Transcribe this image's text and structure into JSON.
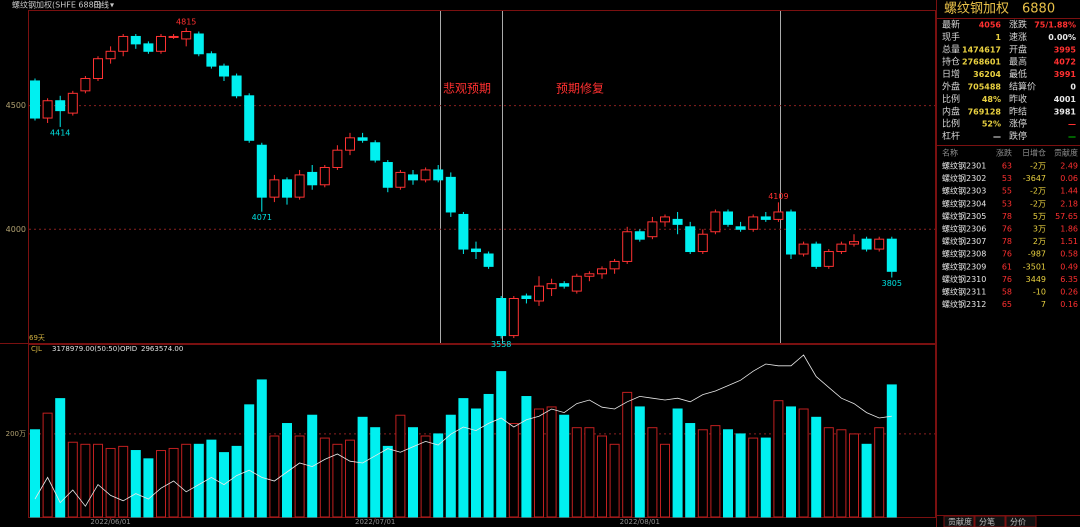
{
  "chart_data": [
    {
      "type": "candlestick",
      "title": "螺纹钢加权(SHFE 6880)",
      "period": "日线",
      "count_label": "69天",
      "annotations": [
        "悲观预期",
        "预期修复"
      ],
      "categories": [
        null,
        null,
        null,
        null,
        null,
        null,
        "2022/06/01",
        null,
        null,
        null,
        null,
        null,
        null,
        null,
        null,
        null,
        null,
        null,
        null,
        null,
        null,
        null,
        null,
        null,
        null,
        null,
        null,
        "2022/07/01",
        null,
        null,
        null,
        null,
        null,
        null,
        null,
        null,
        null,
        null,
        null,
        null,
        null,
        null,
        null,
        null,
        null,
        null,
        null,
        null,
        "2022/08/01",
        null,
        null,
        null,
        null,
        null,
        null,
        null,
        null,
        null,
        null,
        null,
        null,
        null,
        null,
        null,
        null,
        null,
        null,
        null,
        null
      ],
      "open": [
        4600,
        4450,
        4520,
        4470,
        4560,
        4610,
        4690,
        4720,
        4780,
        4750,
        4720,
        4780,
        4770,
        4790,
        4710,
        4660,
        4620,
        4540,
        4340,
        4130,
        4200,
        4130,
        4230,
        4180,
        4250,
        4320,
        4370,
        4350,
        4270,
        4170,
        4220,
        4200,
        4240,
        4210,
        4060,
        3920,
        3900,
        3720,
        3570,
        3730,
        3710,
        3760,
        3780,
        3750,
        3810,
        3820,
        3840,
        3870,
        3990,
        3970,
        4030,
        4040,
        4010,
        3910,
        3990,
        4070,
        4010,
        4000,
        4050,
        4040,
        4070,
        3900,
        3940,
        3850,
        3910,
        3940,
        3960,
        3920,
        3960
      ],
      "high": [
        4610,
        4530,
        4540,
        4560,
        4620,
        4700,
        4740,
        4790,
        4790,
        4760,
        4790,
        4790,
        4815,
        4800,
        4720,
        4670,
        4630,
        4550,
        4350,
        4220,
        4210,
        4240,
        4260,
        4260,
        4340,
        4390,
        4390,
        4360,
        4280,
        4240,
        4240,
        4250,
        4260,
        4230,
        4070,
        3950,
        3910,
        3730,
        3730,
        3740,
        3810,
        3800,
        3790,
        3820,
        3830,
        3850,
        3880,
        4010,
        4000,
        4050,
        4060,
        4070,
        4030,
        4000,
        4080,
        4080,
        4030,
        4060,
        4070,
        4109,
        4080,
        3950,
        3950,
        3920,
        3950,
        3980,
        3970,
        3970,
        3970
      ],
      "low": [
        4440,
        4430,
        4414,
        4460,
        4550,
        4600,
        4670,
        4700,
        4730,
        4710,
        4710,
        4770,
        4740,
        4700,
        4650,
        4600,
        4530,
        4350,
        4071,
        4110,
        4100,
        4120,
        4160,
        4170,
        4240,
        4300,
        4350,
        4270,
        4150,
        4160,
        4180,
        4190,
        4190,
        4050,
        3900,
        3880,
        3840,
        3558,
        3560,
        3700,
        3690,
        3730,
        3760,
        3740,
        3790,
        3800,
        3820,
        3860,
        3950,
        3960,
        4010,
        3980,
        3900,
        3900,
        3980,
        4010,
        3990,
        3990,
        4030,
        4030,
        3880,
        3890,
        3840,
        3840,
        3900,
        3930,
        3910,
        3910,
        3805
      ],
      "close": [
        4450,
        4520,
        4480,
        4550,
        4610,
        4690,
        4720,
        4780,
        4750,
        4720,
        4780,
        4780,
        4800,
        4710,
        4660,
        4620,
        4540,
        4360,
        4130,
        4200,
        4130,
        4220,
        4180,
        4250,
        4320,
        4370,
        4360,
        4280,
        4170,
        4230,
        4200,
        4240,
        4200,
        4070,
        3920,
        3910,
        3850,
        3570,
        3720,
        3720,
        3770,
        3780,
        3770,
        3810,
        3820,
        3840,
        3870,
        3990,
        3960,
        4030,
        4050,
        4020,
        3910,
        3980,
        4070,
        4020,
        4000,
        4050,
        4040,
        4070,
        3900,
        3940,
        3850,
        3910,
        3940,
        3950,
        3920,
        3960,
        3830
      ],
      "up_color": "#ff3232",
      "down_color": "#00f0f0",
      "ylim": [
        3540,
        4883
      ],
      "yticks": [
        4000,
        4500
      ],
      "grid": true
    },
    {
      "type": "bar",
      "header": "3178979.00(50:50)",
      "oi_value": "2963574.00",
      "series": [
        {
          "name": "CJL",
          "values": [
            210,
            250,
            285,
            180,
            175,
            175,
            165,
            170,
            160,
            140,
            160,
            165,
            175,
            175,
            185,
            155,
            170,
            270,
            330,
            195,
            225,
            195,
            245,
            190,
            175,
            185,
            240,
            215,
            170,
            245,
            215,
            195,
            200,
            245,
            285,
            260,
            295,
            350,
            225,
            290,
            260,
            265,
            245,
            215,
            215,
            195,
            175,
            300,
            265,
            215,
            175,
            260,
            225,
            210,
            220,
            210,
            200,
            190,
            190,
            280,
            265,
            260,
            240,
            215,
            210,
            200,
            175,
            215,
            318
          ]
        },
        {
          "name": "OPID",
          "color": "#e8e8e8",
          "axis": "y2",
          "values": [
            250,
            262,
            248,
            255,
            246,
            258,
            252,
            249,
            253,
            250,
            256,
            260,
            254,
            258,
            262,
            258,
            263,
            266,
            262,
            260,
            265,
            270,
            268,
            272,
            275,
            271,
            270,
            274,
            278,
            276,
            279,
            282,
            280,
            286,
            290,
            288,
            292,
            295,
            290,
            294,
            296,
            300,
            298,
            303,
            305,
            301,
            300,
            304,
            307,
            306,
            305,
            306,
            304,
            308,
            310,
            313,
            316,
            321,
            325,
            324,
            324,
            330,
            318,
            312,
            306,
            303,
            298,
            295,
            296
          ]
        }
      ],
      "ylim": [
        0,
        390
      ],
      "yticks": [
        {
          "value": 200,
          "label": "200万"
        }
      ],
      "y2lim": [
        240,
        330
      ]
    }
  ],
  "panel": {
    "title": "螺纹钢加权",
    "code": "6880",
    "quote": [
      [
        "最新",
        "4056",
        "涨跌",
        "75/1.88%"
      ],
      [
        "现手",
        "1",
        "速涨",
        "0.00%"
      ],
      [
        "总量",
        "1474617",
        "开盘",
        "3995"
      ],
      [
        "持仓",
        "2768601",
        "最高",
        "4072"
      ],
      [
        "日增",
        "36204",
        "最低",
        "3991"
      ],
      [
        "外盘",
        "705488",
        "结算价",
        "0"
      ],
      [
        "比例",
        "48%",
        "昨收",
        "4001"
      ],
      [
        "内盘",
        "769128",
        "昨结",
        "3981"
      ],
      [
        "比例",
        "52%",
        "涨停",
        "—"
      ],
      [
        "杠杆",
        "—",
        "跌停",
        "—"
      ]
    ],
    "contracts": {
      "header": [
        "名称",
        "涨跌",
        "日增仓",
        "贡献度"
      ],
      "rows": [
        [
          "螺纹钢2301",
          "63",
          "-2万",
          "2.49"
        ],
        [
          "螺纹钢2302",
          "53",
          "-3647",
          "0.06"
        ],
        [
          "螺纹钢2303",
          "55",
          "-2万",
          "1.44"
        ],
        [
          "螺纹钢2304",
          "53",
          "-2万",
          "2.18"
        ],
        [
          "螺纹钢2305",
          "78",
          "5万",
          "57.65"
        ],
        [
          "螺纹钢2306",
          "76",
          "3万",
          "1.86"
        ],
        [
          "螺纹钢2307",
          "78",
          "2万",
          "1.51"
        ],
        [
          "螺纹钢2308",
          "76",
          "-987",
          "0.58"
        ],
        [
          "螺纹钢2309",
          "61",
          "-3501",
          "0.49"
        ],
        [
          "螺纹钢2310",
          "76",
          "3449",
          "6.35"
        ],
        [
          "螺纹钢2311",
          "58",
          "-10",
          "0.26"
        ],
        [
          "螺纹钢2312",
          "65",
          "7",
          "0.16"
        ]
      ]
    },
    "tabs": [
      "贡献度",
      "分笔",
      "分价"
    ]
  }
}
